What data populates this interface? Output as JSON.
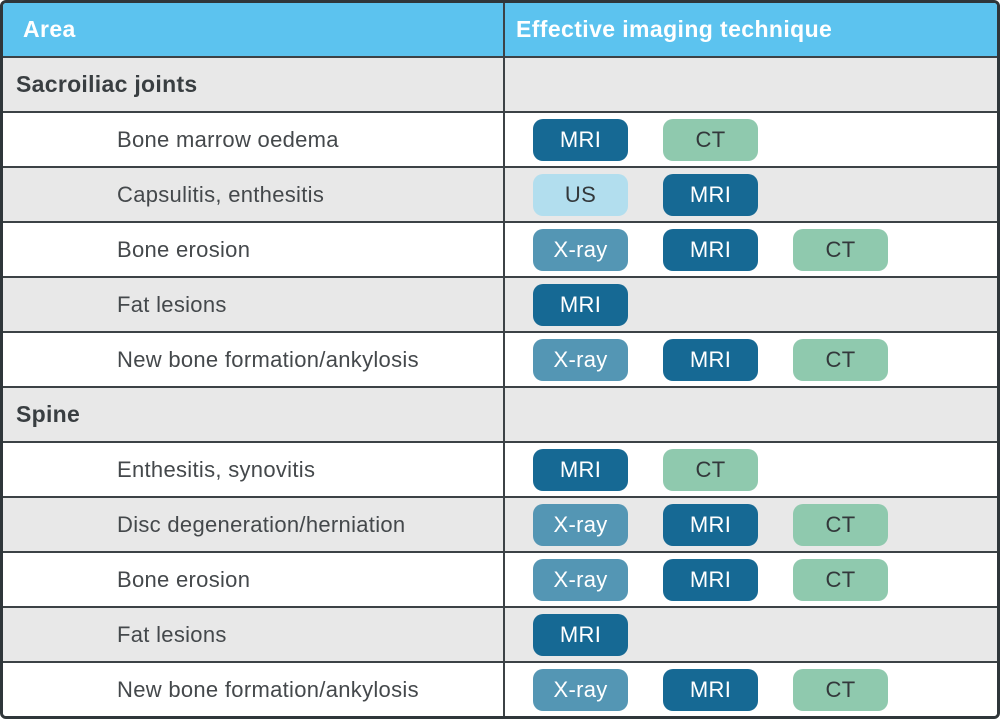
{
  "chart_data": {
    "type": "table",
    "columns": [
      "Area",
      "Effective imaging technique"
    ],
    "rows": [
      {
        "kind": "section",
        "label": "Sacroiliac joints",
        "techniques": []
      },
      {
        "kind": "item",
        "label": "Bone marrow oedema",
        "techniques": [
          "MRI",
          "CT"
        ]
      },
      {
        "kind": "item",
        "label": "Capsulitis, enthesitis",
        "techniques": [
          "US",
          "MRI"
        ]
      },
      {
        "kind": "item",
        "label": "Bone erosion",
        "techniques": [
          "X-ray",
          "MRI",
          "CT"
        ]
      },
      {
        "kind": "item",
        "label": "Fat lesions",
        "techniques": [
          "MRI"
        ]
      },
      {
        "kind": "item",
        "label": "New bone formation/ankylosis",
        "techniques": [
          "X-ray",
          "MRI",
          "CT"
        ]
      },
      {
        "kind": "section",
        "label": "Spine",
        "techniques": []
      },
      {
        "kind": "item",
        "label": "Enthesitis, synovitis",
        "techniques": [
          "MRI",
          "CT"
        ]
      },
      {
        "kind": "item",
        "label": "Disc degeneration/herniation",
        "techniques": [
          "X-ray",
          "MRI",
          "CT"
        ]
      },
      {
        "kind": "item",
        "label": "Bone erosion",
        "techniques": [
          "X-ray",
          "MRI",
          "CT"
        ]
      },
      {
        "kind": "item",
        "label": "Fat lesions",
        "techniques": [
          "MRI"
        ]
      },
      {
        "kind": "item",
        "label": "New bone formation/ankylosis",
        "techniques": [
          "X-ray",
          "MRI",
          "CT"
        ]
      }
    ]
  },
  "badge_styles": {
    "MRI": {
      "bg": "#166994",
      "text": "#FFFFFF"
    },
    "CT": {
      "bg": "#8FC9AE",
      "text": "#33383B"
    },
    "US": {
      "bg": "#B2DEEE",
      "text": "#33383B"
    },
    "X-ray": {
      "bg": "#5496B4",
      "text": "#FFFFFF"
    }
  },
  "colors": {
    "header_bg": "#5CC3EF",
    "header_text": "#FFFFFF",
    "row_shaded_bg": "#E8E8E8",
    "row_plain_bg": "#FFFFFF",
    "grid_line": "#3C4246",
    "outer_border": "#2F363A"
  }
}
